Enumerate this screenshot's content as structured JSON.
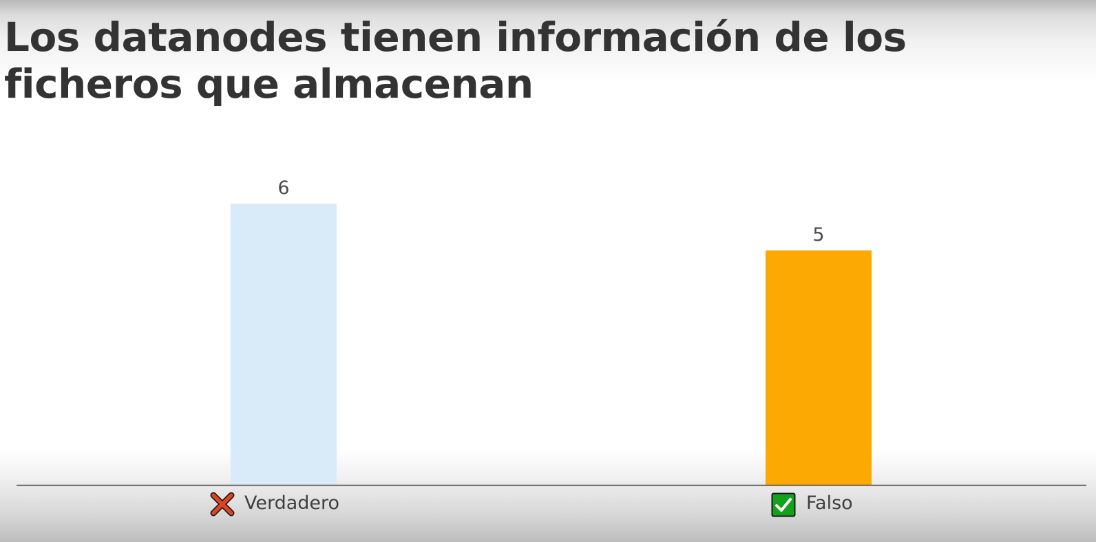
{
  "title": "Los datanodes tienen información de los ficheros que almacenan",
  "chart_data": {
    "type": "bar",
    "categories": [
      "Verdadero",
      "Falso"
    ],
    "values": [
      6,
      5
    ],
    "category_icons": [
      "cross-mark-icon",
      "check-mark-icon"
    ],
    "colors": [
      "#d9eaf9",
      "#fca903"
    ],
    "icon_colors": {
      "cross": "#e0431f",
      "check": "#14a11e"
    },
    "ylim": [
      0,
      7
    ],
    "grid": false,
    "legend": "none"
  }
}
